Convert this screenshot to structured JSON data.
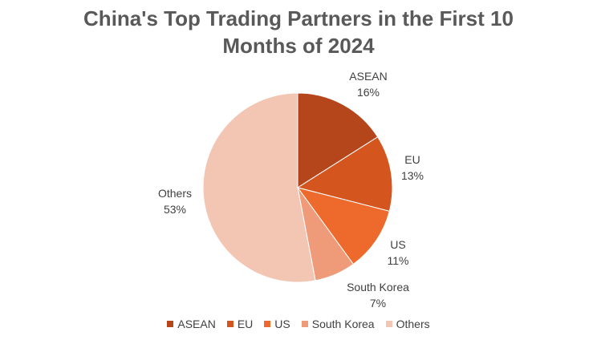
{
  "chart_data": {
    "type": "pie",
    "title": "China's Top Trading Partners in the First 10 Months of 2024",
    "legend_position": "bottom",
    "slices": [
      {
        "label": "ASEAN",
        "value": 16,
        "value_label": "16%",
        "color": "#b5451b"
      },
      {
        "label": "EU",
        "value": 13,
        "value_label": "13%",
        "color": "#d4551d"
      },
      {
        "label": "US",
        "value": 11,
        "value_label": "11%",
        "color": "#ee6a2c"
      },
      {
        "label": "South Korea",
        "value": 7,
        "value_label": "7%",
        "color": "#ef9a78"
      },
      {
        "label": "Others",
        "value": 53,
        "value_label": "53%",
        "color": "#f3c5b3"
      }
    ]
  }
}
